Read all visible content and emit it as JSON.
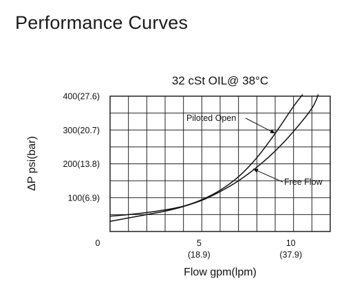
{
  "page": {
    "title": "Performance Curves"
  },
  "chart_data": {
    "type": "line",
    "title": "32 cSt OIL@ 38°C",
    "xlabel": "Flow gpm(lpm)",
    "ylabel": "ΔP psi(bar)",
    "xlim": [
      0,
      12
    ],
    "ylim": [
      0,
      400
    ],
    "grid": true,
    "x_ticks": [
      {
        "value": 0,
        "label": "0",
        "sublabel": ""
      },
      {
        "value": 5,
        "label": "5",
        "sublabel": "(18.9)"
      },
      {
        "value": 10,
        "label": "10",
        "sublabel": "(37.9)"
      }
    ],
    "y_ticks": [
      {
        "value": 100,
        "label": "100(6.9)"
      },
      {
        "value": 200,
        "label": "200(13.8)"
      },
      {
        "value": 300,
        "label": "300(20.7)"
      },
      {
        "value": 400,
        "label": "400(27.6)"
      }
    ],
    "series": [
      {
        "name": "Piloted Open",
        "x": [
          0,
          1,
          2,
          3,
          4,
          5,
          6,
          7,
          8,
          9,
          10,
          10.5
        ],
        "y": [
          45,
          50,
          56,
          64,
          75,
          94,
          122,
          162,
          218,
          290,
          370,
          405
        ]
      },
      {
        "name": "Free Flow",
        "x": [
          0,
          1,
          2,
          3,
          4,
          5,
          6,
          7,
          8,
          9,
          10,
          11,
          11.35
        ],
        "y": [
          30,
          40,
          50,
          60,
          74,
          92,
          118,
          150,
          190,
          238,
          296,
          364,
          405
        ]
      }
    ],
    "annotations": [
      {
        "text": "Piloted Open",
        "series": "Piloted Open",
        "x": 9,
        "y": 290
      },
      {
        "text": "Free Flow",
        "series": "Free Flow",
        "x": 7.8,
        "y": 185
      }
    ]
  }
}
